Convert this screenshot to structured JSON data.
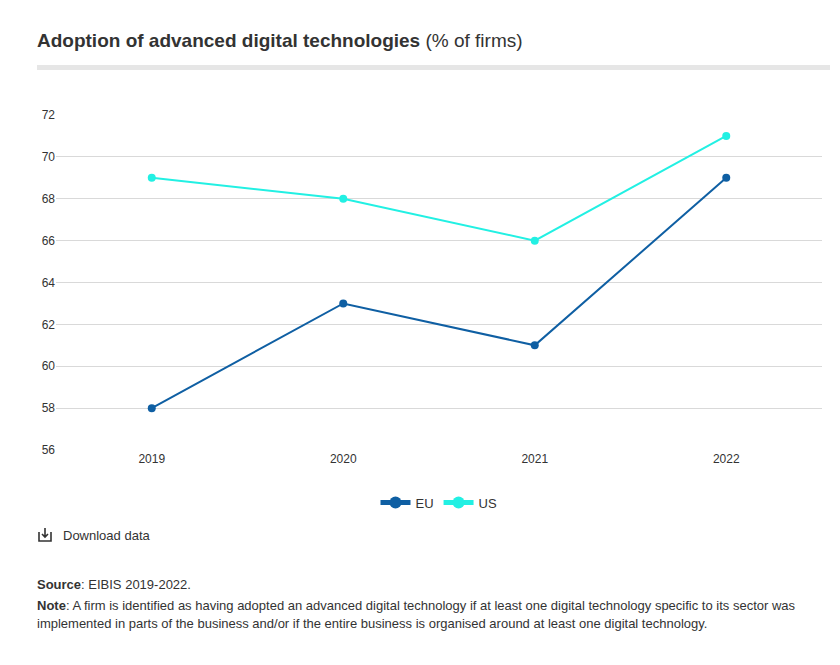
{
  "chart_data": {
    "type": "line",
    "title": "Adoption of advanced digital technologies",
    "subtitle": "(% of firms)",
    "categories": [
      "2019",
      "2020",
      "2021",
      "2022"
    ],
    "series": [
      {
        "name": "EU",
        "color": "#0f5fa3",
        "values": [
          58,
          63,
          61,
          69
        ]
      },
      {
        "name": "US",
        "color": "#22f0e3",
        "values": [
          69,
          68,
          66,
          71
        ]
      }
    ],
    "ylim": [
      56,
      72
    ],
    "yticks": [
      56,
      58,
      60,
      62,
      64,
      66,
      68,
      70,
      72
    ],
    "grid": true,
    "legend": "bottom",
    "marker": "circle",
    "annotations": [
      "Download data",
      "Source: EIBIS 2019-2022.",
      "Note: A firm is identified as having adopted an advanced digital technology if at least one digital technology specific to its sector was implemented in parts of the business and/or if the entire business is organised around at least one digital technology."
    ]
  }
}
